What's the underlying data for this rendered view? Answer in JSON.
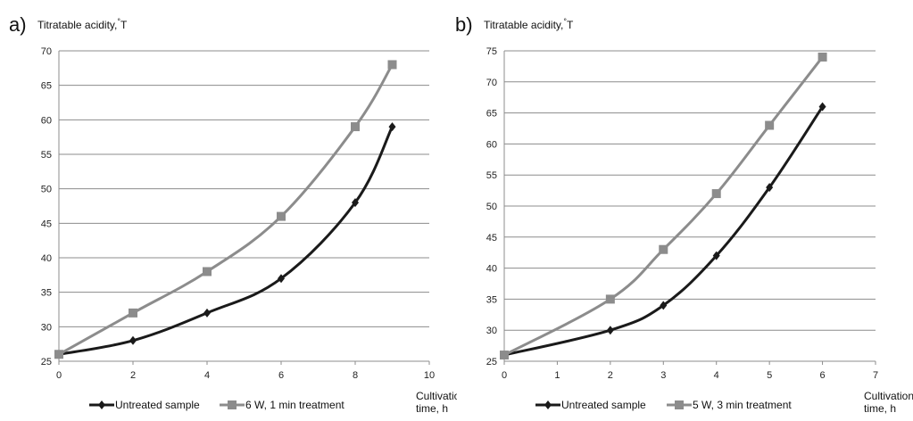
{
  "chart_data": [
    {
      "type": "line",
      "panel_label": "a)",
      "ylabel": "Titratable acidity,",
      "ylabel_unit": "°T",
      "xlabel": [
        "Cultivation",
        "time, h"
      ],
      "xlim": [
        0,
        10
      ],
      "ylim": [
        25,
        70
      ],
      "xticks": [
        0,
        2,
        4,
        6,
        8,
        10
      ],
      "yticks": [
        25,
        30,
        35,
        40,
        45,
        50,
        55,
        60,
        65,
        70
      ],
      "grid": true,
      "legend_position": "bottom",
      "series": [
        {
          "name": "Untreated sample",
          "color": "#1a1a1a",
          "marker": "diamond",
          "x": [
            0,
            2,
            4,
            6,
            8,
            9
          ],
          "y": [
            26,
            28,
            32,
            37,
            48,
            59
          ]
        },
        {
          "name": "6 W, 1 min treatment",
          "color": "#8c8c8c",
          "marker": "square",
          "x": [
            0,
            2,
            4,
            6,
            8,
            9
          ],
          "y": [
            26,
            32,
            38,
            46,
            59,
            68
          ]
        }
      ]
    },
    {
      "type": "line",
      "panel_label": "b)",
      "ylabel": "Titratable acidity,",
      "ylabel_unit": "°T",
      "xlabel": [
        "Cultivation",
        "time, h"
      ],
      "xlim": [
        0,
        7
      ],
      "ylim": [
        25,
        75
      ],
      "xticks": [
        0,
        1,
        2,
        3,
        4,
        5,
        6,
        7
      ],
      "yticks": [
        25,
        30,
        35,
        40,
        45,
        50,
        55,
        60,
        65,
        70,
        75
      ],
      "grid": true,
      "legend_position": "bottom",
      "series": [
        {
          "name": "Untreated sample",
          "color": "#1a1a1a",
          "marker": "diamond",
          "x": [
            0,
            2,
            3,
            4,
            5,
            6
          ],
          "y": [
            26,
            30,
            34,
            42,
            53,
            66
          ]
        },
        {
          "name": "5 W, 3 min treatment",
          "color": "#8c8c8c",
          "marker": "square",
          "x": [
            0,
            2,
            3,
            4,
            5,
            6
          ],
          "y": [
            26,
            35,
            43,
            52,
            63,
            74
          ]
        }
      ]
    }
  ]
}
